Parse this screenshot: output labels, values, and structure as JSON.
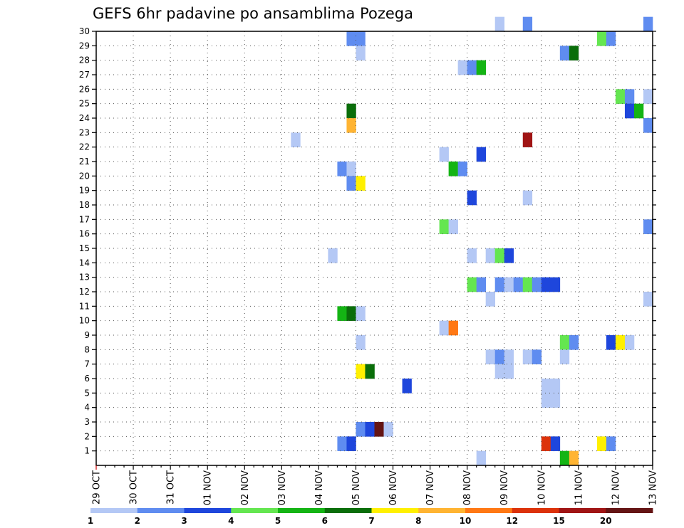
{
  "chart_data": {
    "type": "heatmap",
    "title": "GEFS 6hr padavine po ansamblima Pozega",
    "xlabel": "",
    "ylabel": "",
    "x_tick_labels": [
      "29 OCT",
      "30 OCT",
      "31 OCT",
      "01 NOV",
      "02 NOV",
      "03 NOV",
      "04 NOV",
      "05 NOV",
      "06 NOV",
      "07 NOV",
      "08 NOV",
      "09 NOV",
      "10 NOV",
      "11 NOV",
      "12 NOV",
      "13 NOV"
    ],
    "x_range": [
      0,
      60
    ],
    "x_unit": "6-hour steps from 29 OCT",
    "y_tick_labels": [
      "1",
      "2",
      "3",
      "4",
      "5",
      "6",
      "7",
      "8",
      "9",
      "10",
      "11",
      "12",
      "13",
      "14",
      "15",
      "16",
      "17",
      "18",
      "19",
      "20",
      "21",
      "22",
      "23",
      "24",
      "25",
      "26",
      "27",
      "28",
      "29",
      "30"
    ],
    "y_range": [
      0,
      30
    ],
    "grid": true,
    "colorbar": {
      "labels": [
        "1",
        "2",
        "3",
        "4",
        "5",
        "6",
        "7",
        "8",
        "10",
        "12",
        "15",
        "20"
      ],
      "colors": [
        "#b4c8f5",
        "#5f8cf0",
        "#1e46dc",
        "#64e650",
        "#14b414",
        "#0a6e0a",
        "#fff000",
        "#ffb432",
        "#ff7814",
        "#dc320a",
        "#a01414",
        "#641414"
      ]
    },
    "cells": [
      {
        "t": 43,
        "m": 30,
        "c": 1
      },
      {
        "t": 46,
        "m": 30,
        "c": 2
      },
      {
        "t": 59,
        "m": 30,
        "c": 2
      },
      {
        "t": 27,
        "m": 29,
        "c": 2
      },
      {
        "t": 28,
        "m": 29,
        "c": 2
      },
      {
        "t": 54,
        "m": 29,
        "c": 4
      },
      {
        "t": 55,
        "m": 29,
        "c": 2
      },
      {
        "t": 28,
        "m": 28,
        "c": 1
      },
      {
        "t": 50,
        "m": 28,
        "c": 2
      },
      {
        "t": 51,
        "m": 28,
        "c": 6
      },
      {
        "t": 39,
        "m": 27,
        "c": 1
      },
      {
        "t": 40,
        "m": 27,
        "c": 2
      },
      {
        "t": 41,
        "m": 27,
        "c": 5
      },
      {
        "t": 56,
        "m": 25,
        "c": 4
      },
      {
        "t": 57,
        "m": 25,
        "c": 2
      },
      {
        "t": 59,
        "m": 25,
        "c": 1
      },
      {
        "t": 27,
        "m": 24,
        "c": 6
      },
      {
        "t": 57,
        "m": 24,
        "c": 3
      },
      {
        "t": 58,
        "m": 24,
        "c": 5
      },
      {
        "t": 27,
        "m": 23,
        "c": 8
      },
      {
        "t": 59,
        "m": 23,
        "c": 2
      },
      {
        "t": 21,
        "m": 22,
        "c": 1
      },
      {
        "t": 46,
        "m": 22,
        "c": 11
      },
      {
        "t": 37,
        "m": 21,
        "c": 1
      },
      {
        "t": 41,
        "m": 21,
        "c": 3
      },
      {
        "t": 26,
        "m": 20,
        "c": 2
      },
      {
        "t": 27,
        "m": 20,
        "c": 1
      },
      {
        "t": 38,
        "m": 20,
        "c": 5
      },
      {
        "t": 39,
        "m": 20,
        "c": 2
      },
      {
        "t": 27,
        "m": 19,
        "c": 2
      },
      {
        "t": 28,
        "m": 19,
        "c": 7
      },
      {
        "t": 40,
        "m": 18,
        "c": 3
      },
      {
        "t": 46,
        "m": 18,
        "c": 1
      },
      {
        "t": 37,
        "m": 16,
        "c": 4
      },
      {
        "t": 38,
        "m": 16,
        "c": 1
      },
      {
        "t": 59,
        "m": 16,
        "c": 2
      },
      {
        "t": 25,
        "m": 14,
        "c": 1
      },
      {
        "t": 40,
        "m": 14,
        "c": 1
      },
      {
        "t": 42,
        "m": 14,
        "c": 1
      },
      {
        "t": 43,
        "m": 14,
        "c": 4
      },
      {
        "t": 44,
        "m": 14,
        "c": 3
      },
      {
        "t": 40,
        "m": 12,
        "c": 4
      },
      {
        "t": 41,
        "m": 12,
        "c": 2
      },
      {
        "t": 43,
        "m": 12,
        "c": 2
      },
      {
        "t": 44,
        "m": 12,
        "c": 1
      },
      {
        "t": 45,
        "m": 12,
        "c": 2
      },
      {
        "t": 46,
        "m": 12,
        "c": 4
      },
      {
        "t": 47,
        "m": 12,
        "c": 2
      },
      {
        "t": 48,
        "m": 12,
        "c": 3
      },
      {
        "t": 49,
        "m": 12,
        "c": 3
      },
      {
        "t": 42,
        "m": 11,
        "c": 1
      },
      {
        "t": 59,
        "m": 11,
        "c": 1
      },
      {
        "t": 26,
        "m": 10,
        "c": 5
      },
      {
        "t": 27,
        "m": 10,
        "c": 6
      },
      {
        "t": 28,
        "m": 10,
        "c": 1
      },
      {
        "t": 37,
        "m": 9,
        "c": 1
      },
      {
        "t": 38,
        "m": 9,
        "c": 9
      },
      {
        "t": 28,
        "m": 8,
        "c": 1
      },
      {
        "t": 50,
        "m": 8,
        "c": 4
      },
      {
        "t": 51,
        "m": 8,
        "c": 2
      },
      {
        "t": 55,
        "m": 8,
        "c": 3
      },
      {
        "t": 56,
        "m": 8,
        "c": 7
      },
      {
        "t": 57,
        "m": 8,
        "c": 1
      },
      {
        "t": 42,
        "m": 7,
        "c": 1
      },
      {
        "t": 43,
        "m": 7,
        "c": 2
      },
      {
        "t": 44,
        "m": 7,
        "c": 1
      },
      {
        "t": 46,
        "m": 7,
        "c": 1
      },
      {
        "t": 47,
        "m": 7,
        "c": 2
      },
      {
        "t": 50,
        "m": 7,
        "c": 1
      },
      {
        "t": 28,
        "m": 6,
        "c": 7
      },
      {
        "t": 29,
        "m": 6,
        "c": 6
      },
      {
        "t": 43,
        "m": 6,
        "c": 1
      },
      {
        "t": 44,
        "m": 6,
        "c": 1
      },
      {
        "t": 33,
        "m": 5,
        "c": 3
      },
      {
        "t": 48,
        "m": 5,
        "c": 1
      },
      {
        "t": 49,
        "m": 5,
        "c": 1
      },
      {
        "t": 48,
        "m": 4,
        "c": 1
      },
      {
        "t": 49,
        "m": 4,
        "c": 1
      },
      {
        "t": 28,
        "m": 2,
        "c": 2
      },
      {
        "t": 29,
        "m": 2,
        "c": 3
      },
      {
        "t": 30,
        "m": 2,
        "c": 12
      },
      {
        "t": 31,
        "m": 2,
        "c": 1
      },
      {
        "t": 26,
        "m": 1,
        "c": 2
      },
      {
        "t": 27,
        "m": 1,
        "c": 3
      },
      {
        "t": 48,
        "m": 1,
        "c": 10
      },
      {
        "t": 49,
        "m": 1,
        "c": 3
      },
      {
        "t": 54,
        "m": 1,
        "c": 7
      },
      {
        "t": 55,
        "m": 1,
        "c": 2
      },
      {
        "t": 41,
        "m": 0,
        "c": 1
      },
      {
        "t": 50,
        "m": 0,
        "c": 5
      },
      {
        "t": 51,
        "m": 0,
        "c": 8
      }
    ]
  }
}
